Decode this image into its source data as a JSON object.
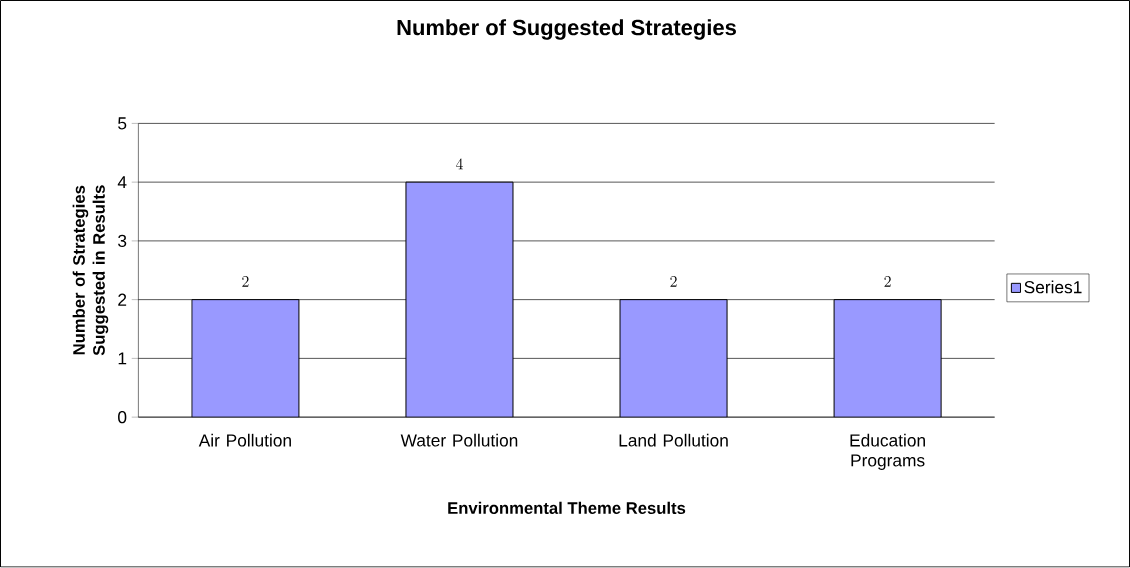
{
  "chart_data": {
    "type": "bar",
    "title": "Number of Suggested Strategies",
    "xlabel": "Environmental Theme Results",
    "ylabel": "Number of Strategies Suggested in Results",
    "categories": [
      "Air Pollution",
      "Water Pollution",
      "Land Pollution",
      "Education Programs"
    ],
    "series": [
      {
        "name": "Series1",
        "color": "#9999ff",
        "values": [
          2,
          4,
          2,
          2
        ]
      }
    ],
    "ylim": [
      0,
      5
    ],
    "yticks": [
      0,
      1,
      2,
      3,
      4,
      5
    ],
    "grid": "y",
    "legend": "right",
    "data_labels": true
  }
}
